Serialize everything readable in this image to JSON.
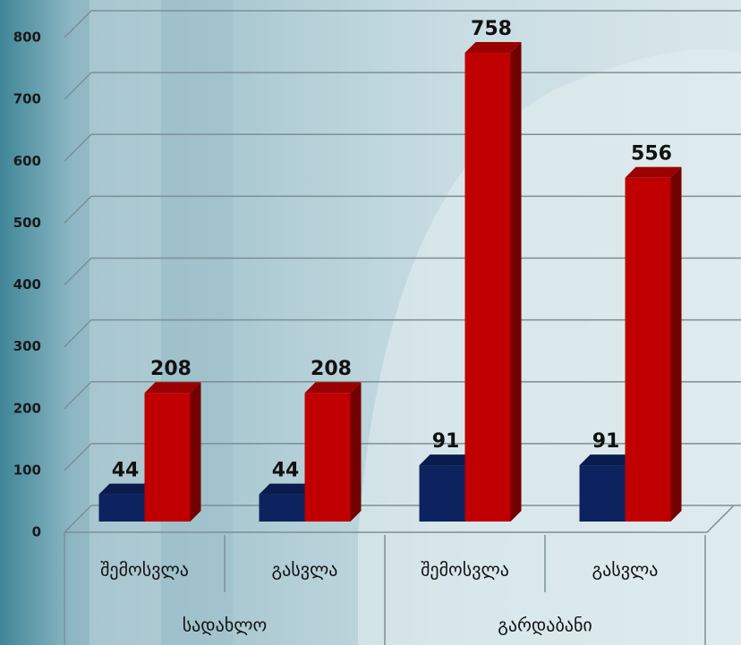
{
  "chart_data": {
    "type": "bar",
    "categories": [
      "შემოსვლა",
      "გასვლა",
      "შემოსვლა",
      "გასვლა"
    ],
    "groups": [
      "სადახლო",
      "გარდაბანი"
    ],
    "series": [
      {
        "color": "#0d2360",
        "values": [
          44,
          44,
          91,
          91
        ]
      },
      {
        "color": "#c00000",
        "values": [
          208,
          208,
          758,
          556
        ]
      }
    ],
    "ylim": [
      0,
      800
    ],
    "yticks": [
      0,
      100,
      200,
      300,
      400,
      500,
      600,
      700,
      800
    ],
    "grid": true
  }
}
